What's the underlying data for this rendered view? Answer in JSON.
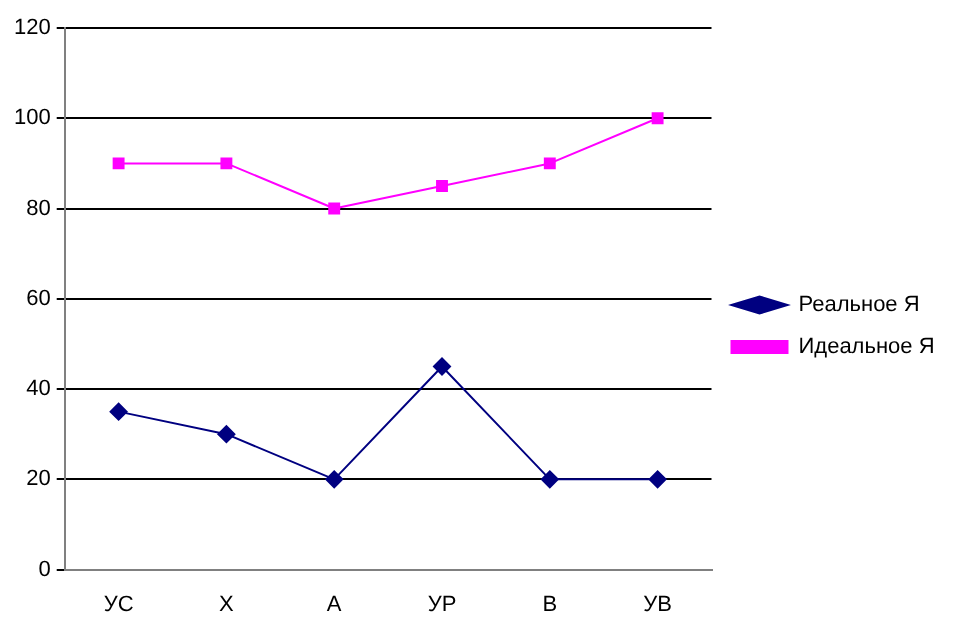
{
  "chart_data": {
    "type": "line",
    "categories": [
      "УС",
      "Х",
      "А",
      "УР",
      "В",
      "УВ"
    ],
    "series": [
      {
        "name": "Реальное Я",
        "color": "#000080",
        "marker": "diamond",
        "values": [
          35,
          30,
          20,
          45,
          20,
          20
        ]
      },
      {
        "name": "Идеальное Я",
        "color": "#ff00ff",
        "marker": "square",
        "values": [
          90,
          90,
          80,
          85,
          90,
          100
        ]
      }
    ],
    "ylim": [
      0,
      120
    ],
    "yticks": [
      0,
      20,
      40,
      60,
      80,
      100,
      120
    ],
    "grid": "y",
    "legend": "right",
    "line_style": "solid"
  }
}
